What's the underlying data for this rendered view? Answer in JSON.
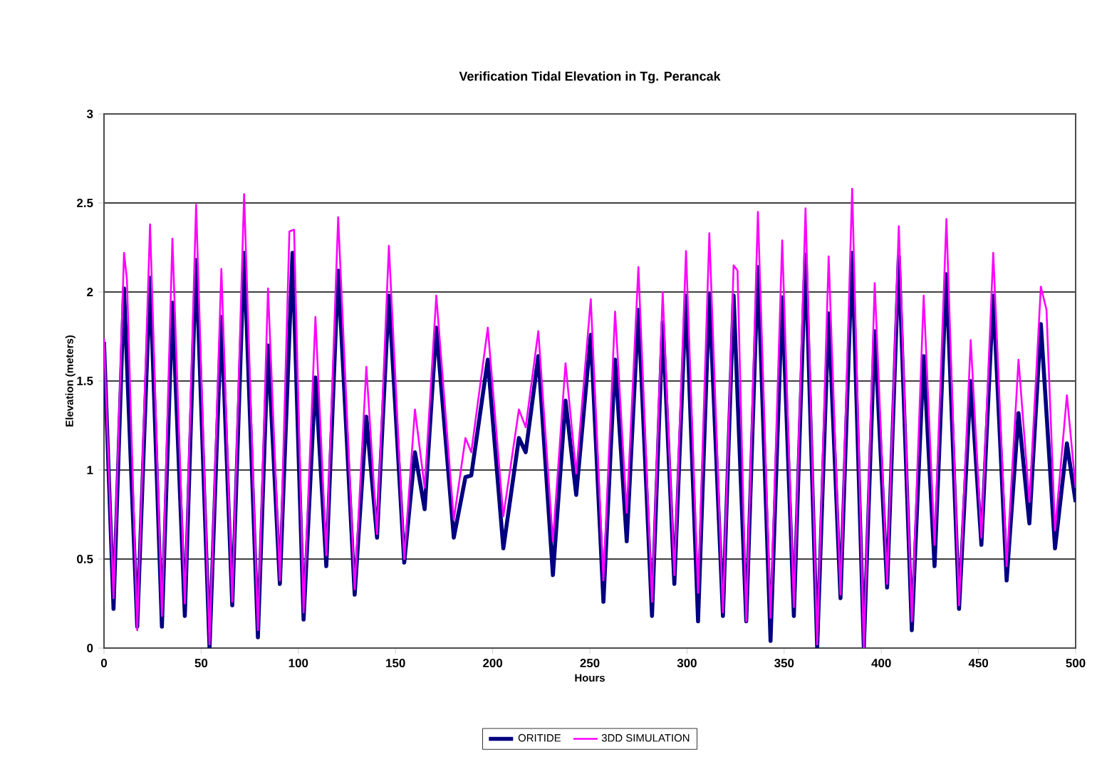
{
  "chart_data": {
    "type": "line",
    "title": "Verification Tidal Elevation in Tg. Perancak",
    "xlabel": "Hours",
    "ylabel": "Elevation (meters)",
    "xlim": [
      0,
      500
    ],
    "xticks": [
      0,
      50,
      100,
      150,
      200,
      250,
      300,
      350,
      400,
      450,
      500
    ],
    "ylim": [
      0,
      3
    ],
    "yticks": [
      0,
      0.5,
      1,
      1.5,
      2,
      2.5,
      3
    ],
    "grid": "y",
    "legend": "bottom",
    "series": [
      {
        "name": "ORITIDE",
        "color": "#000080",
        "x": [
          0,
          4.9,
          10.3,
          17.1,
          23.7,
          29.8,
          35.2,
          41.6,
          47.4,
          54.3,
          60.4,
          66,
          72.1,
          79.2,
          84.4,
          90.5,
          97,
          102.7,
          108.8,
          114.4,
          120.5,
          129,
          135,
          140.5,
          146.6,
          154.5,
          160,
          165,
          171,
          180,
          186,
          189,
          197.5,
          205.5,
          213.5,
          217,
          223.5,
          231,
          237.5,
          243,
          250.5,
          257,
          263,
          269,
          275,
          282,
          287.5,
          293.5,
          299.5,
          305.7,
          311.5,
          318.5,
          324,
          330.5,
          336.5,
          343,
          349,
          355,
          361,
          367,
          372.9,
          379,
          385,
          391,
          396.6,
          403,
          409,
          415.7,
          421.8,
          427.4,
          433.5,
          440,
          446,
          451.5,
          457.6,
          464.5,
          470.6,
          476.2,
          482.1,
          489.4,
          495.5,
          500
        ],
        "values": [
          1.72,
          0.22,
          2.02,
          0.12,
          2.08,
          0.12,
          1.94,
          0.18,
          2.18,
          0,
          1.86,
          0.24,
          2.22,
          0.06,
          1.7,
          0.36,
          2.22,
          0.16,
          1.52,
          0.46,
          2.12,
          0.3,
          1.3,
          0.62,
          1.98,
          0.48,
          1.1,
          0.78,
          1.8,
          0.62,
          0.96,
          0.97,
          1.62,
          0.56,
          1.18,
          1.1,
          1.64,
          0.41,
          1.39,
          0.86,
          1.76,
          0.26,
          1.62,
          0.6,
          1.9,
          0.18,
          1.83,
          0.36,
          1.98,
          0.15,
          1.99,
          0.18,
          1.98,
          0.15,
          2.14,
          0.04,
          1.97,
          0.18,
          2.21,
          0,
          1.88,
          0.28,
          2.22,
          0,
          1.78,
          0.34,
          2.2,
          0.1,
          1.64,
          0.46,
          2.1,
          0.22,
          1.5,
          0.58,
          1.98,
          0.38,
          1.32,
          0.7,
          1.82,
          0.56,
          1.15,
          0.82
        ]
      },
      {
        "name": "3DD SIMULATION",
        "color": "#ff00ff",
        "x": [
          0,
          4.9,
          10.3,
          11.8,
          17.1,
          23.7,
          29.8,
          35.2,
          41.6,
          47.4,
          54.3,
          60.4,
          66,
          72.1,
          79.2,
          84.4,
          90.5,
          95.4,
          97.8,
          102.7,
          108.8,
          114.4,
          120.5,
          129,
          135,
          140.5,
          146.6,
          154.5,
          160,
          165,
          171,
          180,
          186,
          189,
          197.5,
          205.5,
          213.5,
          217,
          223.5,
          231,
          237.5,
          243,
          250.5,
          257,
          263,
          269,
          275,
          282,
          287.5,
          293.5,
          299.5,
          305.7,
          311.5,
          318.5,
          324,
          326,
          330.5,
          336.5,
          343,
          349,
          355,
          361,
          367,
          372.9,
          379,
          385,
          391,
          396.6,
          403,
          409,
          415.7,
          421.8,
          427.4,
          433.5,
          440,
          446,
          451.5,
          457.6,
          464.5,
          470.6,
          476.2,
          482.1,
          485,
          489.4,
          495.5,
          500
        ],
        "values": [
          1.74,
          0.28,
          2.22,
          2.07,
          0.1,
          2.38,
          0.18,
          2.3,
          0.25,
          2.49,
          0.02,
          2.13,
          0.26,
          2.55,
          0.1,
          2.02,
          0.38,
          2.34,
          2.35,
          0.2,
          1.86,
          0.52,
          2.42,
          0.33,
          1.58,
          0.64,
          2.26,
          0.5,
          1.34,
          0.9,
          1.98,
          0.72,
          1.18,
          1.1,
          1.8,
          0.74,
          1.34,
          1.24,
          1.78,
          0.6,
          1.6,
          0.98,
          1.96,
          0.38,
          1.89,
          0.76,
          2.14,
          0.26,
          2.0,
          0.41,
          2.23,
          0.31,
          2.33,
          0.2,
          2.15,
          2.12,
          0.15,
          2.45,
          0.17,
          2.29,
          0.23,
          2.47,
          0.02,
          2.2,
          0.3,
          2.58,
          0,
          2.05,
          0.36,
          2.37,
          0.15,
          1.98,
          0.58,
          2.41,
          0.24,
          1.73,
          0.62,
          2.22,
          0.46,
          1.62,
          0.82,
          2.03,
          1.9,
          0.66,
          1.42,
          0.9
        ]
      }
    ]
  }
}
